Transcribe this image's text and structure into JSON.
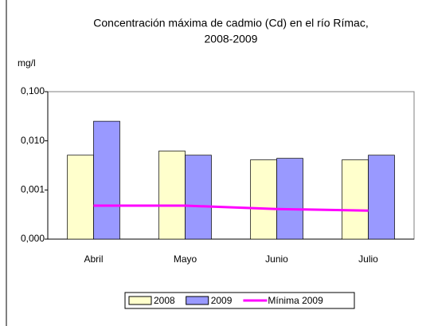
{
  "chart_data": {
    "type": "bar",
    "title": [
      "Concentración máxima de cadmio (Cd) en  el río Rímac,",
      "2008-2009"
    ],
    "y_label": "mg/l",
    "categories": [
      "Abril",
      "Mayo",
      "Junio",
      "Julio"
    ],
    "series": [
      {
        "name": "2008",
        "type": "bar",
        "color": "#ffffcc",
        "values": [
          0.0051,
          0.0062,
          0.0041,
          0.0041
        ]
      },
      {
        "name": "2009",
        "type": "bar",
        "color": "#9999ff",
        "values": [
          0.025,
          0.0051,
          0.0044,
          0.0051
        ]
      },
      {
        "name": "Mínima 2009",
        "type": "line",
        "color": "#ff00ff",
        "values": [
          0.00048,
          0.00048,
          0.00041,
          0.00038
        ]
      }
    ],
    "log_scale": true,
    "ylim": [
      0.0001,
      0.1
    ],
    "yticks": [
      {
        "value": 0.0001,
        "label": "0,000"
      },
      {
        "value": 0.001,
        "label": "0,001"
      },
      {
        "value": 0.01,
        "label": "0,010"
      },
      {
        "value": 0.1,
        "label": "0,100"
      }
    ],
    "legend": "bottom"
  }
}
